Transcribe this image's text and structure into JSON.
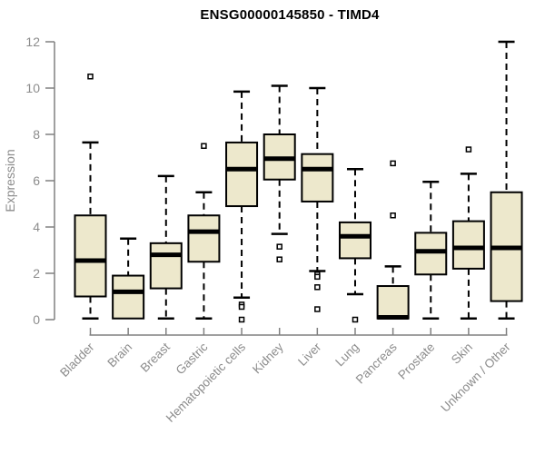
{
  "chart_data": {
    "type": "boxplot",
    "title": "ENSG00000145850 - TIMD4",
    "ylabel": "Expression",
    "xlabel": "",
    "ylim": [
      0,
      12
    ],
    "yticks": [
      0,
      2,
      4,
      6,
      8,
      10,
      12
    ],
    "grid": false,
    "legend": "none",
    "categories": [
      "Bladder",
      "Brain",
      "Breast",
      "Gastric",
      "Hematopoietic cells",
      "Kidney",
      "Liver",
      "Lung",
      "Pancreas",
      "Prostate",
      "Skin",
      "Unknown / Other"
    ],
    "boxes": [
      {
        "category": "Bladder",
        "low": 0.05,
        "q1": 1.0,
        "median": 2.55,
        "q3": 4.5,
        "high": 7.65,
        "outliers": [
          10.5
        ]
      },
      {
        "category": "Brain",
        "low": 0.05,
        "q1": 0.05,
        "median": 1.2,
        "q3": 1.9,
        "high": 3.5,
        "outliers": []
      },
      {
        "category": "Breast",
        "low": 0.05,
        "q1": 1.35,
        "median": 2.8,
        "q3": 3.3,
        "high": 6.2,
        "outliers": []
      },
      {
        "category": "Gastric",
        "low": 0.05,
        "q1": 2.5,
        "median": 3.8,
        "q3": 4.5,
        "high": 5.5,
        "outliers": [
          7.5
        ]
      },
      {
        "category": "Hematopoietic cells",
        "low": 0.95,
        "q1": 4.9,
        "median": 6.5,
        "q3": 7.65,
        "high": 9.85,
        "outliers": [
          0.65,
          0.55,
          0.0
        ]
      },
      {
        "category": "Kidney",
        "low": 3.7,
        "q1": 6.05,
        "median": 6.95,
        "q3": 8.0,
        "high": 10.1,
        "outliers": [
          3.15,
          2.6
        ]
      },
      {
        "category": "Liver",
        "low": 2.1,
        "q1": 5.1,
        "median": 6.5,
        "q3": 7.15,
        "high": 10.0,
        "outliers": [
          1.95,
          1.85,
          1.4,
          0.45
        ]
      },
      {
        "category": "Lung",
        "low": 1.1,
        "q1": 2.65,
        "median": 3.6,
        "q3": 4.2,
        "high": 6.5,
        "outliers": [
          0.0
        ]
      },
      {
        "category": "Pancreas",
        "low": 0.05,
        "q1": 0.05,
        "median": 0.1,
        "q3": 1.45,
        "high": 2.3,
        "outliers": [
          6.75,
          4.5
        ]
      },
      {
        "category": "Prostate",
        "low": 0.05,
        "q1": 1.95,
        "median": 2.95,
        "q3": 3.75,
        "high": 5.95,
        "outliers": []
      },
      {
        "category": "Skin",
        "low": 0.05,
        "q1": 2.2,
        "median": 3.1,
        "q3": 4.25,
        "high": 6.3,
        "outliers": [
          7.35
        ]
      },
      {
        "category": "Unknown / Other",
        "low": 0.05,
        "q1": 0.8,
        "median": 3.1,
        "q3": 5.5,
        "high": 12.0,
        "outliers": []
      }
    ],
    "colors": {
      "box_fill": "#EDE8CC",
      "box_border": "#000000",
      "median": "#000000",
      "whisker": "#000000",
      "outlier_fill": "#FFFFFF",
      "outlier_border": "#000000",
      "axis": "#808080",
      "tick_label": "#8C8C8C",
      "title": "#000000",
      "background": "#FFFFFF"
    }
  }
}
